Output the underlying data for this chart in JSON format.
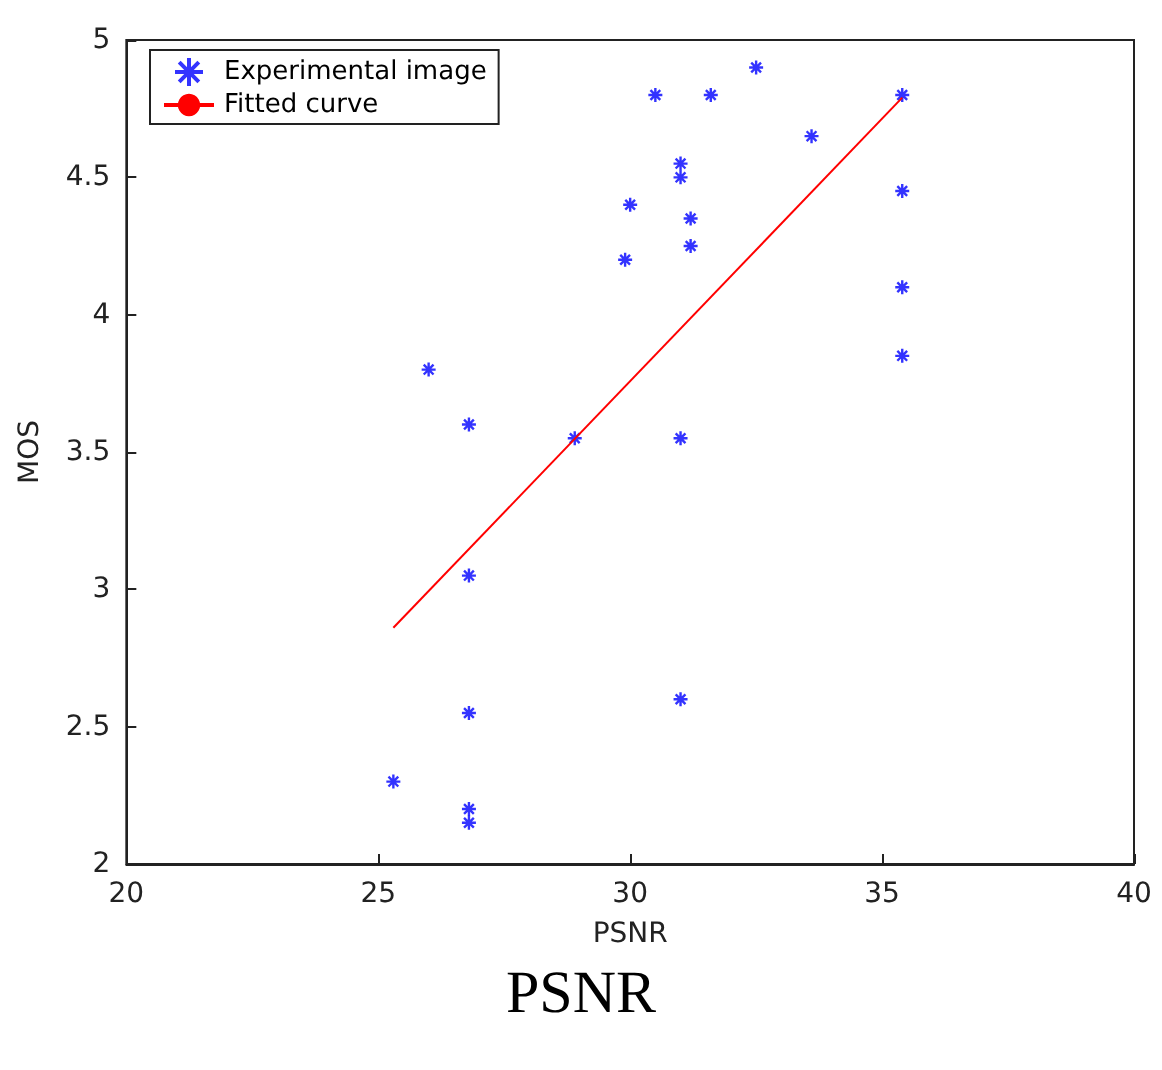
{
  "chart_data": {
    "type": "scatter",
    "xlabel": "PSNR",
    "ylabel": "MOS",
    "annotations": [
      "PSNR"
    ],
    "xlim": [
      20,
      40
    ],
    "xticks": [
      20,
      25,
      30,
      35,
      40
    ],
    "ylim": [
      2,
      5
    ],
    "yticks": [
      2,
      2.5,
      3,
      3.5,
      4,
      4.5,
      5
    ],
    "grid": false,
    "legend": "top left",
    "series": [
      {
        "name": "Experimental image",
        "marker": "cross",
        "color": "#0000ff",
        "x": [
          25.3,
          26.8,
          26.8,
          26.8,
          26.8,
          26.8,
          26.0,
          28.9,
          29.9,
          30.0,
          30.5,
          31.0,
          31.0,
          31.2,
          31.2,
          31.0,
          31.0,
          31.6,
          32.5,
          33.6,
          35.4,
          35.4,
          35.4,
          35.4
        ],
        "values": [
          2.3,
          2.2,
          2.15,
          2.55,
          3.05,
          3.6,
          3.8,
          3.55,
          4.2,
          4.4,
          4.8,
          4.55,
          4.5,
          4.35,
          4.25,
          3.55,
          2.6,
          4.8,
          4.9,
          4.65,
          4.8,
          4.45,
          4.1,
          3.85
        ]
      },
      {
        "name": "Fitted curve",
        "type": "line",
        "marker": "none",
        "line_style": "solid",
        "color": "#ff0000",
        "x": [
          25.3,
          35.4
        ],
        "values": [
          2.86,
          4.79
        ]
      }
    ]
  }
}
